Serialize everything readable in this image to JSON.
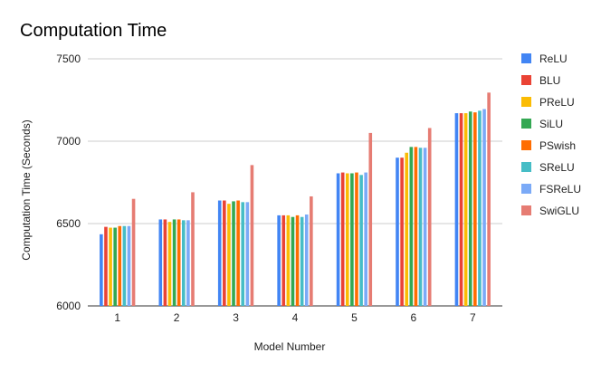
{
  "chart_data": {
    "type": "bar",
    "title": "Computation Time",
    "xlabel": "Model Number",
    "ylabel": "Computation Time (Seconds)",
    "ylim": [
      6000,
      7500
    ],
    "yticks": [
      "6000",
      "6500",
      "7000",
      "7500"
    ],
    "grid": true,
    "legend_position": "right",
    "categories": [
      "1",
      "2",
      "3",
      "4",
      "5",
      "6",
      "7"
    ],
    "series": [
      {
        "name": "ReLU",
        "color": "#4285f4",
        "values": [
          6435,
          6525,
          6640,
          6550,
          6805,
          6900,
          7170
        ]
      },
      {
        "name": "BLU",
        "color": "#ea4335",
        "values": [
          6480,
          6525,
          6640,
          6550,
          6810,
          6900,
          7170
        ]
      },
      {
        "name": "PReLU",
        "color": "#fbbc04",
        "values": [
          6475,
          6510,
          6620,
          6550,
          6805,
          6930,
          7170
        ]
      },
      {
        "name": "SiLU",
        "color": "#34a853",
        "values": [
          6475,
          6525,
          6635,
          6540,
          6805,
          6965,
          7180
        ]
      },
      {
        "name": "PSwish",
        "color": "#ff6d01",
        "values": [
          6485,
          6525,
          6640,
          6550,
          6810,
          6965,
          7175
        ]
      },
      {
        "name": "SReLU",
        "color": "#46bdc6",
        "values": [
          6485,
          6520,
          6630,
          6540,
          6795,
          6960,
          7185
        ]
      },
      {
        "name": "FSReLU",
        "color": "#7baaf7",
        "values": [
          6485,
          6520,
          6630,
          6555,
          6810,
          6960,
          7195
        ]
      },
      {
        "name": "SwiGLU",
        "color": "#e67c73",
        "values": [
          6650,
          6690,
          6855,
          6665,
          7050,
          7080,
          7295
        ]
      }
    ]
  }
}
